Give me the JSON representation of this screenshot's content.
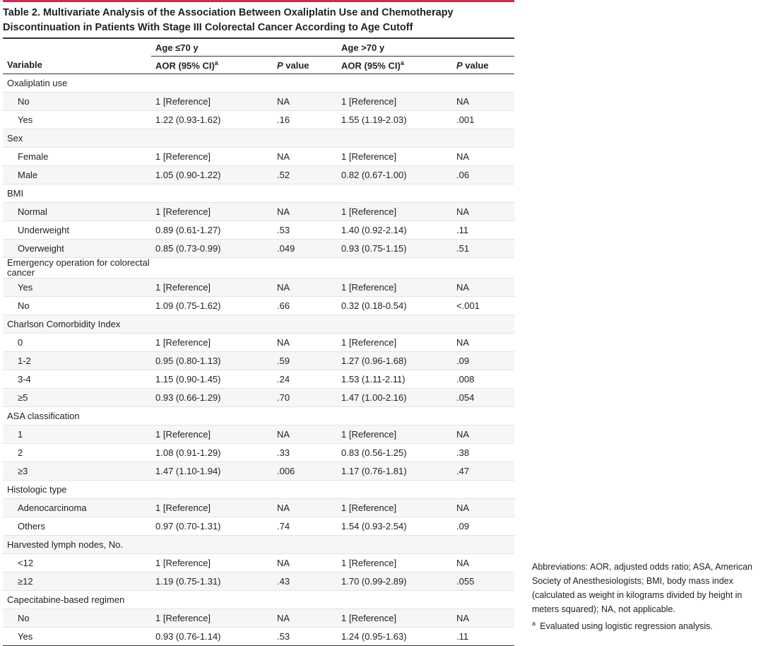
{
  "title": "Table 2. Multivariate Analysis of the Association Between Oxaliplatin Use and Chemotherapy Discontinuation in Patients With Stage III Colorectal Cancer According to Age Cutoff",
  "table": {
    "column_groups": [
      "Age ≤70 y",
      "Age >70 y"
    ],
    "columns": [
      {
        "text": "Variable"
      },
      {
        "text": "AOR (95% CI)",
        "sup": "a"
      },
      {
        "em": "P",
        "text": " value"
      },
      {
        "text": "AOR (95% CI)",
        "sup": "a"
      },
      {
        "em": "P",
        "text": " value"
      }
    ],
    "groups": [
      {
        "label": "Oxaliplatin use",
        "rows": [
          [
            "No",
            "1 [Reference]",
            "NA",
            "1 [Reference]",
            "NA"
          ],
          [
            "Yes",
            "1.22 (0.93-1.62)",
            ".16",
            "1.55 (1.19-2.03)",
            ".001"
          ]
        ]
      },
      {
        "label": "Sex",
        "rows": [
          [
            "Female",
            "1 [Reference]",
            "NA",
            "1 [Reference]",
            "NA"
          ],
          [
            "Male",
            "1.05 (0.90-1.22)",
            ".52",
            "0.82 (0.67-1.00)",
            ".06"
          ]
        ]
      },
      {
        "label": "BMI",
        "rows": [
          [
            "Normal",
            "1 [Reference]",
            "NA",
            "1 [Reference]",
            "NA"
          ],
          [
            "Underweight",
            "0.89 (0.61-1.27)",
            ".53",
            "1.40 (0.92-2.14)",
            ".11"
          ],
          [
            "Overweight",
            "0.85 (0.73-0.99)",
            ".049",
            "0.93 (0.75-1.15)",
            ".51"
          ]
        ]
      },
      {
        "label": "Emergency operation for colorectal cancer",
        "rows": [
          [
            "Yes",
            "1 [Reference]",
            "NA",
            "1 [Reference]",
            "NA"
          ],
          [
            "No",
            "1.09 (0.75-1.62)",
            ".66",
            "0.32 (0.18-0.54)",
            "<.001"
          ]
        ]
      },
      {
        "label": "Charlson Comorbidity Index",
        "rows": [
          [
            "0",
            "1 [Reference]",
            "NA",
            "1 [Reference]",
            "NA"
          ],
          [
            "1-2",
            "0.95 (0.80-1.13)",
            ".59",
            "1.27 (0.96-1.68)",
            ".09"
          ],
          [
            "3-4",
            "1.15 (0.90-1.45)",
            ".24",
            "1.53 (1.11-2.11)",
            ".008"
          ],
          [
            "≥5",
            "0.93 (0.66-1.29)",
            ".70",
            "1.47 (1.00-2.16)",
            ".054"
          ]
        ]
      },
      {
        "label": "ASA classification",
        "rows": [
          [
            "1",
            "1 [Reference]",
            "NA",
            "1 [Reference]",
            "NA"
          ],
          [
            "2",
            "1.08 (0.91-1.29)",
            ".33",
            "0.83 (0.56-1.25)",
            ".38"
          ],
          [
            "≥3",
            "1.47 (1.10-1.94)",
            ".006",
            "1.17 (0.76-1.81)",
            ".47"
          ]
        ]
      },
      {
        "label": "Histologic type",
        "rows": [
          [
            "Adenocarcinoma",
            "1 [Reference]",
            "NA",
            "1 [Reference]",
            "NA"
          ],
          [
            "Others",
            "0.97 (0.70-1.31)",
            ".74",
            "1.54 (0.93-2.54)",
            ".09"
          ]
        ]
      },
      {
        "label": "Harvested lymph nodes, No.",
        "rows": [
          [
            "<12",
            "1 [Reference]",
            "NA",
            "1 [Reference]",
            "NA"
          ],
          [
            "≥12",
            "1.19 (0.75-1.31)",
            ".43",
            "1.70 (0.99-2.89)",
            ".055"
          ]
        ]
      },
      {
        "label": "Capecitabine-based regimen",
        "rows": [
          [
            "No",
            "1 [Reference]",
            "NA",
            "1 [Reference]",
            "NA"
          ],
          [
            "Yes",
            "0.93 (0.76-1.14)",
            ".53",
            "1.24 (0.95-1.63)",
            ".11"
          ]
        ]
      }
    ]
  },
  "footnotes": {
    "abbreviations": "Abbreviations: AOR, adjusted odds ratio; ASA, American Society of Anesthesiologists; BMI, body mass index (calculated as weight in kilograms divided by height in meters squared); NA, not applicable.",
    "notes": [
      {
        "mark": "a",
        "text": "Evaluated using logistic regression analysis."
      }
    ]
  }
}
